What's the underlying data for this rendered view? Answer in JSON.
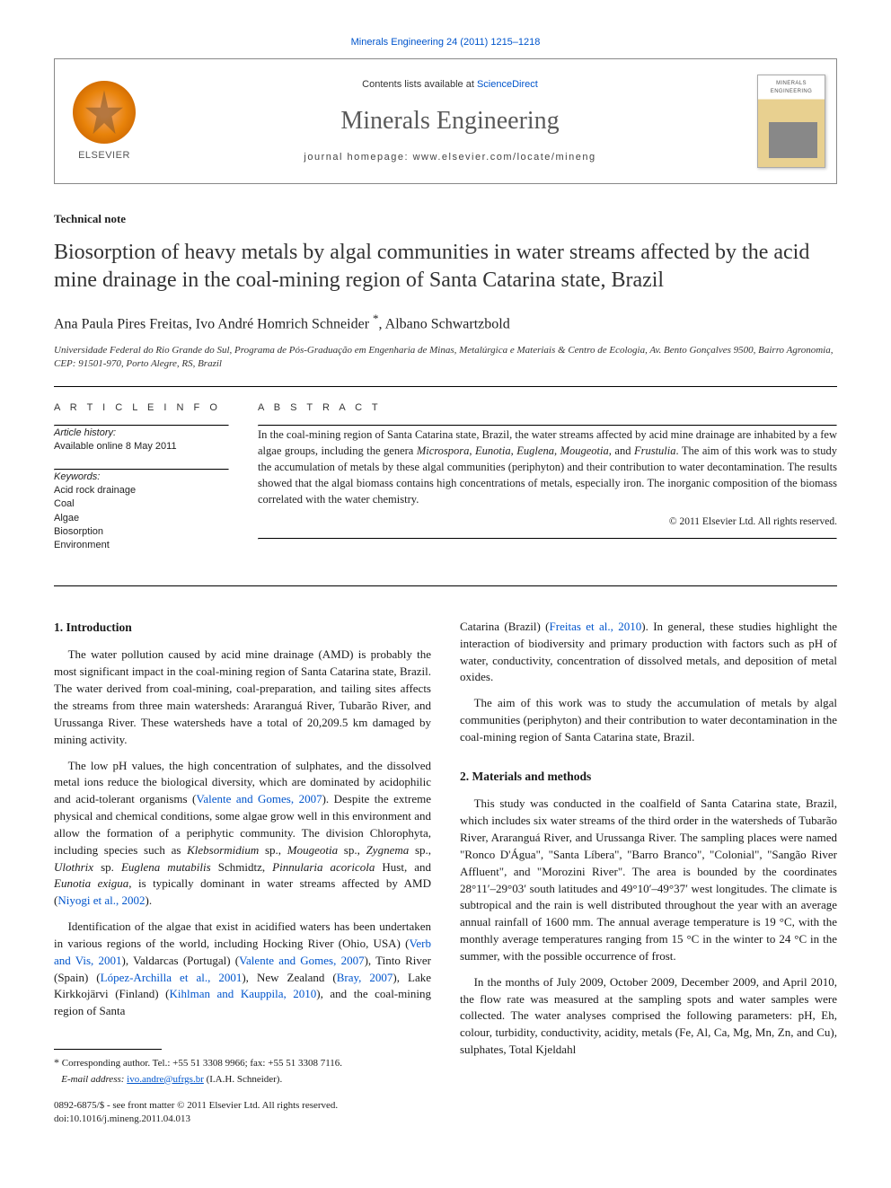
{
  "journalHeaderCitation": "Minerals Engineering 24 (2011) 1215–1218",
  "masthead": {
    "publisher": "ELSEVIER",
    "contentsPrefix": "Contents lists available at ",
    "contentsLink": "ScienceDirect",
    "journalName": "Minerals Engineering",
    "homepageLabel": "journal homepage: www.elsevier.com/locate/mineng"
  },
  "docType": "Technical note",
  "title": "Biosorption of heavy metals by algal communities in water streams affected by the acid mine drainage in the coal-mining region of Santa Catarina state, Brazil",
  "authorsHtml": "Ana Paula Pires Freitas, Ivo André Homrich Schneider <span class=\"corr\">*</span>, Albano Schwartzbold",
  "affiliation": "Universidade Federal do Rio Grande do Sul, Programa de Pós-Graduação em Engenharia de Minas, Metalúrgica e Materiais & Centro de Ecologia, Av. Bento Gonçalves 9500, Bairro Agronomia, CEP: 91501-970, Porto Alegre, RS, Brazil",
  "articleInfoHead": "A R T I C L E   I N F O",
  "abstractHead": "A B S T R A C T",
  "history": {
    "label": "Article history:",
    "line": "Available online 8 May 2011"
  },
  "keywords": {
    "label": "Keywords:",
    "items": [
      "Acid rock drainage",
      "Coal",
      "Algae",
      "Biosorption",
      "Environment"
    ]
  },
  "abstractHtml": "In the coal-mining region of Santa Catarina state, Brazil, the water streams affected by acid mine drainage are inhabited by a few algae groups, including the genera <span class=\"genus\">Microspora</span>, <span class=\"genus\">Eunotia</span>, <span class=\"genus\">Euglena</span>, <span class=\"genus\">Mougeotia</span>, and <span class=\"genus\">Frustulia</span>. The aim of this work was to study the accumulation of metals by these algal communities (periphyton) and their contribution to water decontamination. The results showed that the algal biomass contains high concentrations of metals, especially iron. The inorganic composition of the biomass correlated with the water chemistry.",
  "absCopyright": "© 2011 Elsevier Ltd. All rights reserved.",
  "sections": {
    "s1": {
      "head": "1. Introduction",
      "p1": "The water pollution caused by acid mine drainage (AMD) is probably the most significant impact in the coal-mining region of Santa Catarina state, Brazil. The water derived from coal-mining, coal-preparation, and tailing sites affects the streams from three main watersheds: Araranguá River, Tubarão River, and Urussanga River. These watersheds have a total of 20,209.5 km damaged by mining activity.",
      "p2Html": "The low pH values, the high concentration of sulphates, and the dissolved metal ions reduce the biological diversity, which are dominated by acidophilic and acid-tolerant organisms (<span class=\"lnk\">Valente and Gomes, 2007</span>). Despite the extreme physical and chemical conditions, some algae grow well in this environment and allow the formation of a periphytic community. The division Chlorophyta, including species such as <span class=\"genus\">Klebsormidium</span> sp., <span class=\"genus\">Mougeotia</span> sp., <span class=\"genus\">Zygnema</span> sp., <span class=\"genus\">Ulothrix</span> sp. <span class=\"genus\">Euglena mutabilis</span> Schmidtz, <span class=\"genus\">Pinnularia acoricola</span> Hust, and <span class=\"genus\">Eunotia exigua</span>, is typically dominant in water streams affected by AMD (<span class=\"lnk\">Niyogi et al., 2002</span>).",
      "p3Html": "Identification of the algae that exist in acidified waters has been undertaken in various regions of the world, including Hocking River (Ohio, USA) (<span class=\"lnk\">Verb and Vis, 2001</span>), Valdarcas (Portugal) (<span class=\"lnk\">Valente and Gomes, 2007</span>), Tinto River (Spain) (<span class=\"lnk\">López-Archilla et al., 2001</span>), New Zealand (<span class=\"lnk\">Bray, 2007</span>), Lake Kirkkojärvi (Finland) (<span class=\"lnk\">Kihlman and Kauppila, 2010</span>), and the coal-mining region of Santa",
      "p3bHtml": "Catarina (Brazil) (<span class=\"lnk\">Freitas et al., 2010</span>). In general, these studies highlight the interaction of biodiversity and primary production with factors such as pH of water, conductivity, concentration of dissolved metals, and deposition of metal oxides.",
      "p4": "The aim of this work was to study the accumulation of metals by algal communities (periphyton) and their contribution to water decontamination in the coal-mining region of Santa Catarina state, Brazil."
    },
    "s2": {
      "head": "2. Materials and methods",
      "p1": "This study was conducted in the coalfield of Santa Catarina state, Brazil, which includes six water streams of the third order in the watersheds of Tubarão River, Araranguá River, and Urussanga River. The sampling places were named \"Ronco D'Água\", \"Santa Líbera\", \"Barro Branco\", \"Colonial\", \"Sangão River Affluent\", and \"Morozini River\". The area is bounded by the coordinates 28°11′–29°03′ south latitudes and 49°10′–49°37′ west longitudes. The climate is subtropical and the rain is well distributed throughout the year with an average annual rainfall of 1600 mm. The annual average temperature is 19 °C, with the monthly average temperatures ranging from 15 °C in the winter to 24 °C in the summer, with the possible occurrence of frost.",
      "p2": "In the months of July 2009, October 2009, December 2009, and April 2010, the flow rate was measured at the sampling spots and water samples were collected. The water analyses comprised the following parameters: pH, Eh, colour, turbidity, conductivity, acidity, metals (Fe, Al, Ca, Mg, Mn, Zn, and Cu), sulphates, Total Kjeldahl"
    }
  },
  "footnote": {
    "corr": "Corresponding author. Tel.: +55 51 3308 9966; fax: +55 51 3308 7116.",
    "emailLabel": "E-mail address:",
    "email": "ivo.andre@ufrgs.br",
    "emailOwner": "(I.A.H. Schneider)."
  },
  "doiBlock": {
    "front": "0892-6875/$ - see front matter © 2011 Elsevier Ltd. All rights reserved.",
    "doi": "doi:10.1016/j.mineng.2011.04.013"
  }
}
